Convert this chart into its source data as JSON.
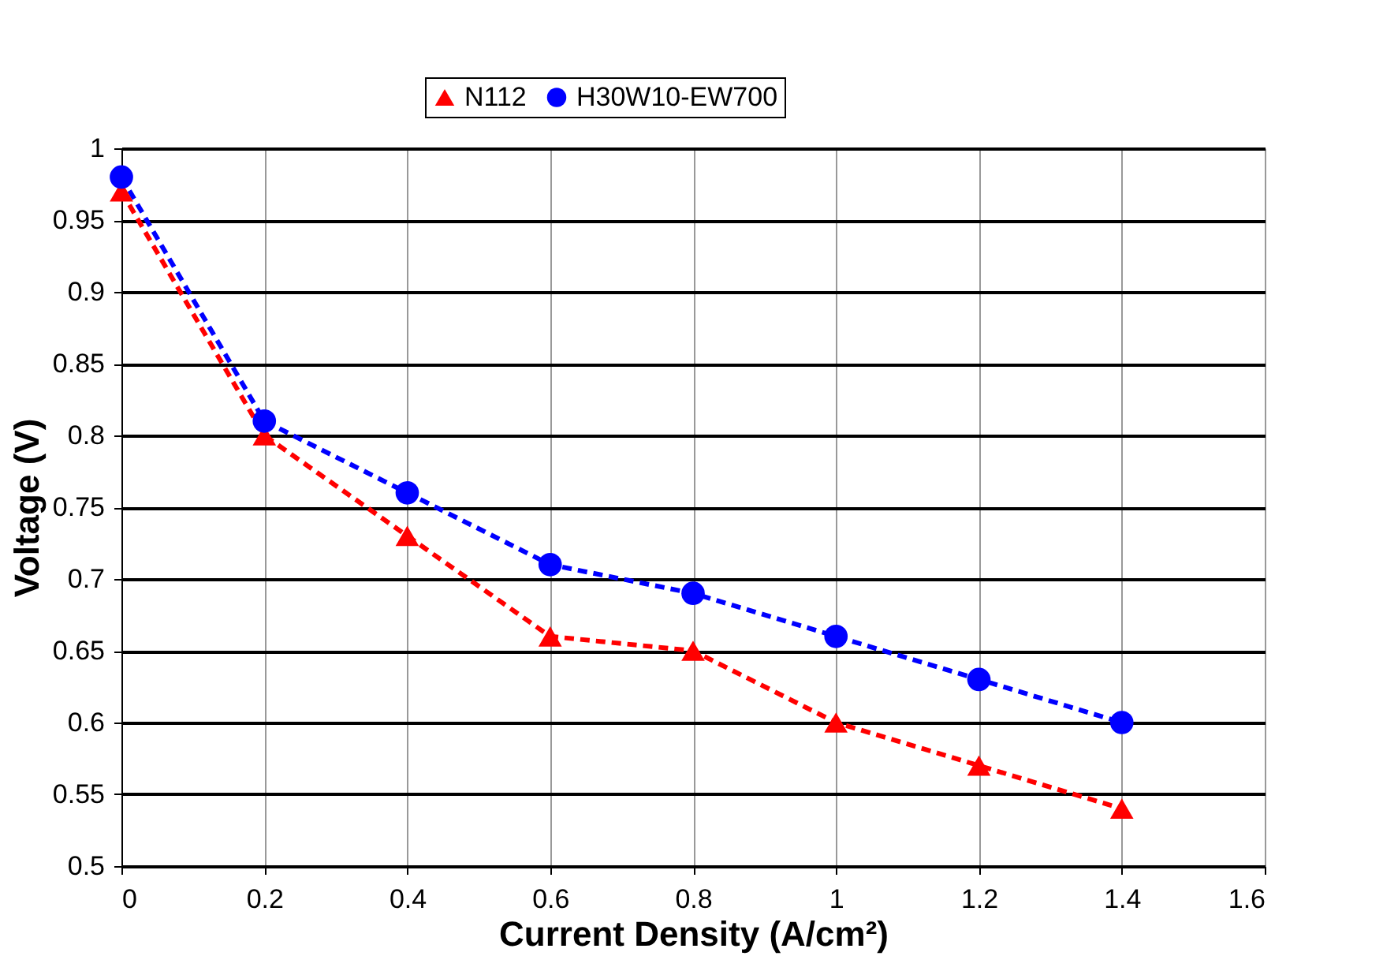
{
  "chart_data": {
    "type": "line",
    "xlabel": "Current Density (A/cm²)",
    "ylabel": "Voltage (V)",
    "x": [
      0,
      0.2,
      0.4,
      0.6,
      0.8,
      1.0,
      1.2,
      1.4
    ],
    "series": [
      {
        "name": "N112",
        "color": "#ff0000",
        "marker": "triangle",
        "line_style": "dashed",
        "values": [
          0.97,
          0.8,
          0.73,
          0.66,
          0.65,
          0.6,
          0.57,
          0.54
        ]
      },
      {
        "name": "H30W10-EW700",
        "color": "#0000ff",
        "marker": "circle",
        "line_style": "dashed",
        "values": [
          0.98,
          0.81,
          0.76,
          0.71,
          0.69,
          0.66,
          0.63,
          0.6
        ]
      }
    ],
    "xlim": [
      0,
      1.6
    ],
    "xticks": [
      0,
      0.2,
      0.4,
      0.6,
      0.8,
      1,
      1.2,
      1.4,
      1.6
    ],
    "ylim": [
      0.5,
      1
    ],
    "yticks": [
      0.5,
      0.55,
      0.6,
      0.65,
      0.7,
      0.75,
      0.8,
      0.85,
      0.9,
      0.95,
      1
    ],
    "grid": true,
    "legend": "top"
  }
}
